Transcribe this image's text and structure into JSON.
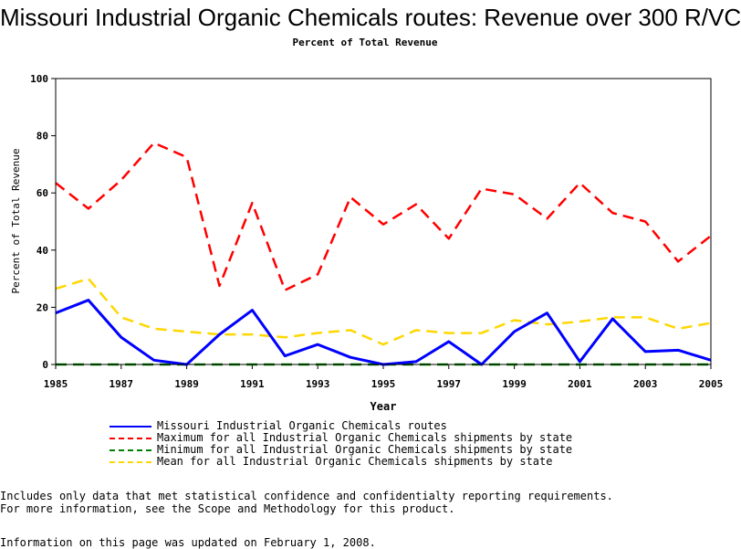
{
  "chart_data": {
    "type": "line",
    "title": "Missouri Industrial Organic Chemicals routes: Revenue over 300 R/VC",
    "subtitle": "Percent of Total Revenue",
    "xlabel": "Year",
    "ylabel": "Percent of Total Revenue",
    "xlim": [
      1985,
      2005
    ],
    "ylim": [
      0,
      100
    ],
    "x_ticks": [
      "1985",
      "1987",
      "1989",
      "1991",
      "1993",
      "1995",
      "1997",
      "1999",
      "2001",
      "2003",
      "2005"
    ],
    "y_ticks": [
      "0",
      "20",
      "40",
      "60",
      "80",
      "100"
    ],
    "x": [
      1985,
      1986,
      1987,
      1988,
      1989,
      1990,
      1991,
      1992,
      1993,
      1994,
      1995,
      1996,
      1997,
      1998,
      1999,
      2000,
      2001,
      2002,
      2003,
      2004,
      2005
    ],
    "series": [
      {
        "name": "Missouri Industrial Organic Chemicals routes",
        "color": "#0000ff",
        "style": "solid",
        "values": [
          18,
          22.5,
          9.5,
          1.5,
          0,
          10.5,
          19,
          3,
          7,
          2.5,
          0,
          1,
          8,
          0,
          11.5,
          18,
          1,
          16,
          4.5,
          5,
          1.5
        ]
      },
      {
        "name": "Maximum for all Industrial Organic Chemicals shipments by state",
        "color": "#ff0000",
        "style": "dashed",
        "values": [
          63.5,
          54.5,
          64.5,
          77.5,
          72.5,
          27.5,
          56.5,
          26,
          31.5,
          58.5,
          49,
          56,
          44,
          61.5,
          59.5,
          51,
          63.5,
          53,
          50,
          36,
          45
        ]
      },
      {
        "name": "Minimum for all Industrial Organic Chemicals shipments by state",
        "color": "#008000",
        "style": "dashed",
        "values": [
          0,
          0,
          0,
          0,
          0,
          0,
          0,
          0,
          0,
          0,
          0,
          0,
          0,
          0,
          0,
          0,
          0,
          0,
          0,
          0,
          0
        ]
      },
      {
        "name": "Mean for all Industrial Organic Chemicals shipments by state",
        "color": "#ffd700",
        "style": "dashed",
        "values": [
          26.5,
          30,
          16.5,
          12.5,
          11.5,
          10.5,
          10.5,
          9.5,
          11,
          12,
          7,
          12,
          11,
          11,
          15.5,
          14,
          15,
          16.5,
          16.5,
          12.5,
          14.5
        ]
      }
    ],
    "grid": false,
    "legend_position": "bottom"
  },
  "notes": [
    "Includes only data that met statistical confidence and confidentialty reporting requirements.",
    "For more information, see the Scope and Methodology for this product."
  ],
  "updated": "Information on this page was updated on February 1, 2008."
}
